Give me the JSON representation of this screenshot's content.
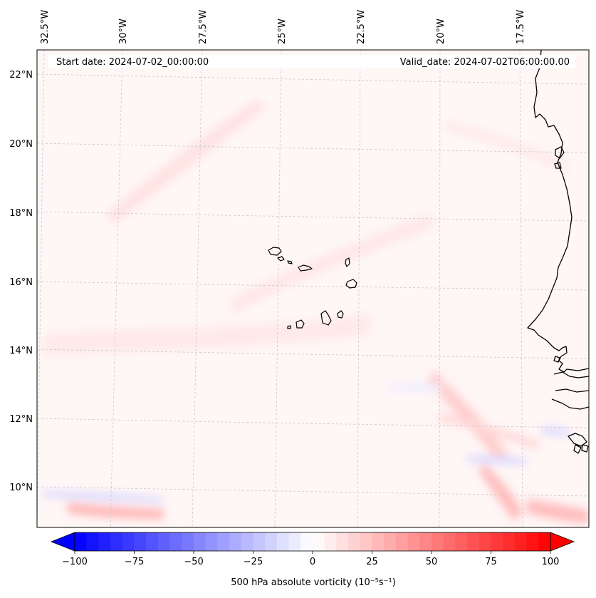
{
  "header": {
    "start_date": "Start date: 2024-07-02_00:00:00",
    "valid_date": "Valid_date: 2024-07-02T06:00:00.00"
  },
  "longitude_labels": [
    "32.5°W",
    "30°W",
    "27.5°W",
    "25°W",
    "22.5°W",
    "20°W",
    "17.5°W"
  ],
  "latitude_labels": [
    "22°N",
    "20°N",
    "18°N",
    "16°N",
    "14°N",
    "12°N",
    "10°N"
  ],
  "colorbar": {
    "label": "500 hPa absolute vorticity (10⁻⁵s⁻¹)",
    "ticks": [
      "−100",
      "−75",
      "−50",
      "−25",
      "0",
      "25",
      "50",
      "75",
      "100"
    ],
    "min": -100,
    "max": 100,
    "low_color": "#0000ff",
    "mid_color": "#ffffff",
    "high_color": "#ff0000"
  },
  "colors": {
    "background_field": "#fff6f6",
    "coastline": "#000000",
    "gridline": "#c8c8c8"
  }
}
